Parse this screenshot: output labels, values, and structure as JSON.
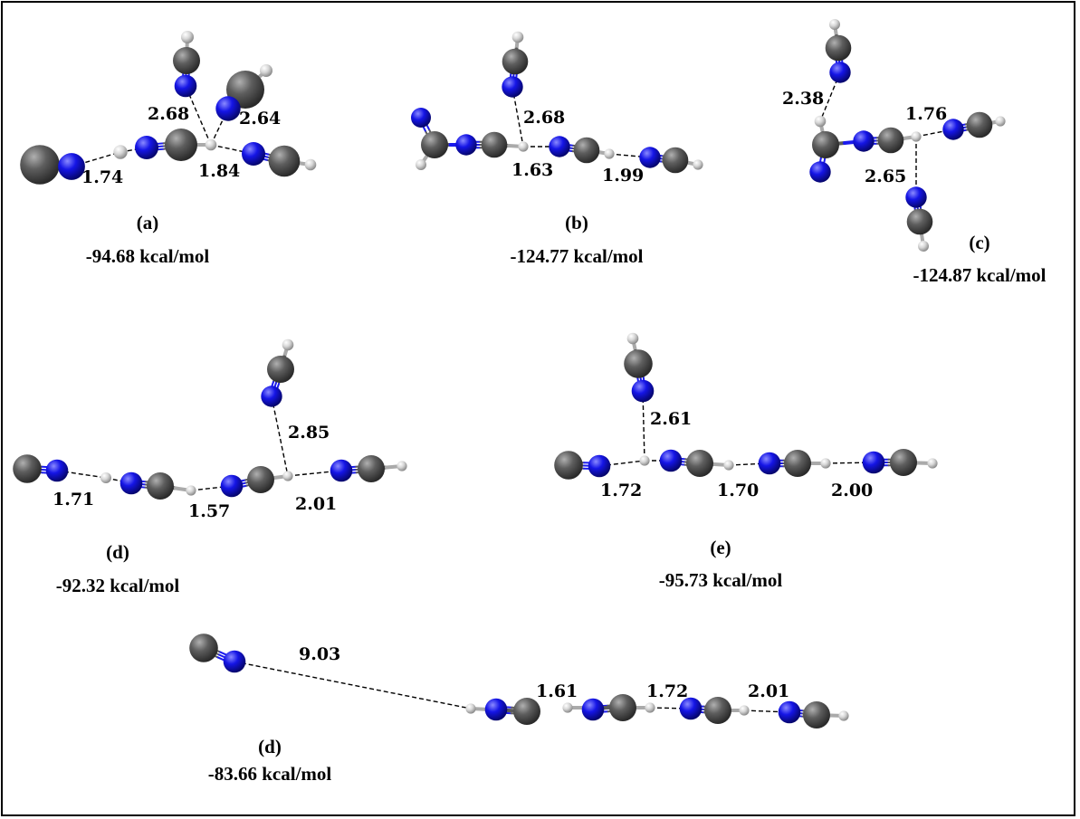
{
  "colors": {
    "carbon": "#5a5a5a",
    "nitrogen": "#1a1aee",
    "hydrogen": "#d8d8d8",
    "hbond": "#000000"
  },
  "structures": [
    {
      "id": "a",
      "caption": "(a)",
      "energy": "-94.68 kcal/mol",
      "distances": [
        "1.74",
        "1.84",
        "2.68",
        "2.64"
      ]
    },
    {
      "id": "b",
      "caption": "(b)",
      "energy": "-124.77 kcal/mol",
      "distances": [
        "2.68",
        "1.63",
        "1.99"
      ]
    },
    {
      "id": "c",
      "caption": "(c)",
      "energy": "-124.87 kcal/mol",
      "distances": [
        "2.38",
        "1.76",
        "2.65"
      ]
    },
    {
      "id": "d1",
      "caption": "(d)",
      "energy": "-92.32 kcal/mol",
      "distances": [
        "2.85",
        "1.71",
        "1.57",
        "2.01"
      ]
    },
    {
      "id": "e",
      "caption": "(e)",
      "energy": "-95.73 kcal/mol",
      "distances": [
        "2.61",
        "1.72",
        "1.70",
        "2.00"
      ]
    },
    {
      "id": "d2",
      "caption": "(d)",
      "energy": "-83.66 kcal/mol",
      "distances": [
        "9.03",
        "1.61",
        "1.72",
        "2.01"
      ]
    }
  ]
}
